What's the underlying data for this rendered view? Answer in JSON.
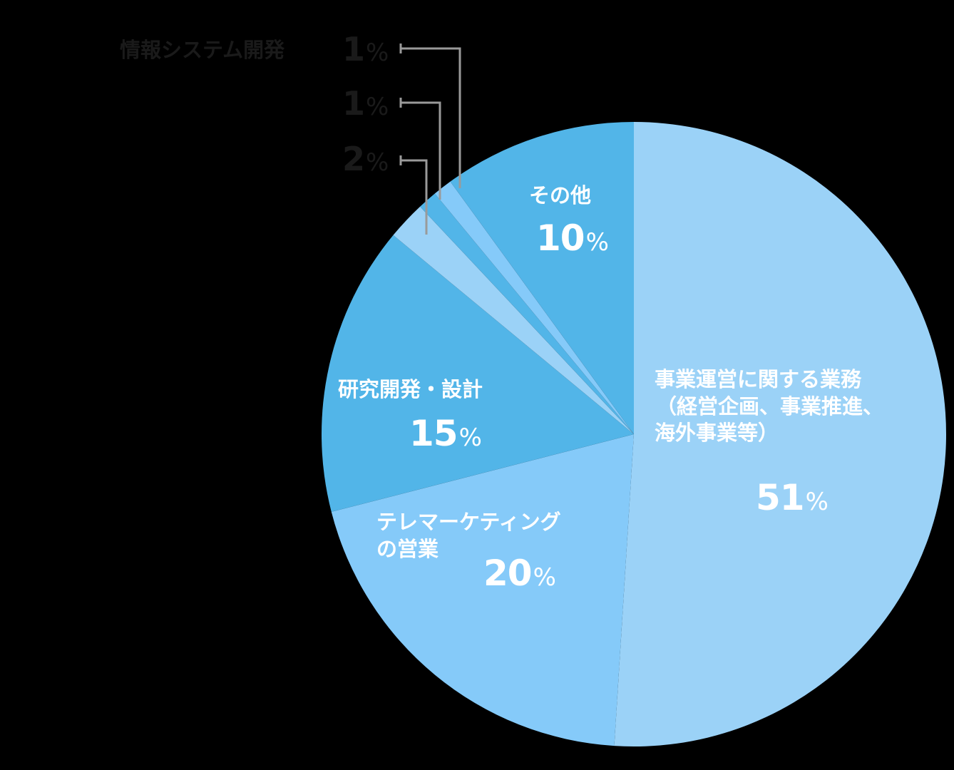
{
  "chart_data": {
    "type": "pie",
    "title": "",
    "start_angle_deg": 0,
    "direction": "clockwise",
    "center": [
      889,
      609
    ],
    "radius": 438,
    "slices": [
      {
        "label": "事業運営に関する業務（経営企画、事業推進、海外事業等）",
        "value": 51,
        "color": "#9bd2f7"
      },
      {
        "label": "テレマーケティングの営業",
        "value": 20,
        "color": "#85caf9"
      },
      {
        "label": "研究開発・設計",
        "value": 15,
        "color": "#52b5e8"
      },
      {
        "label": "",
        "value": 2,
        "color": "#9bd2f7"
      },
      {
        "label": "",
        "value": 1,
        "color": "#52b5e8"
      },
      {
        "label": "情報システム開発",
        "value": 1,
        "color": "#85caf9"
      },
      {
        "label": "その他",
        "value": 10,
        "color": "#52b5e8"
      }
    ]
  },
  "labels": {
    "business": {
      "line1": "事業運営に関する業務",
      "line2": "（経営企画、事業推進、",
      "line3": "海外事業等）",
      "value": "51",
      "unit": "%"
    },
    "telemarketing": {
      "line1": "テレマーケティング",
      "line2": "の営業",
      "value": "20",
      "unit": "%"
    },
    "rnd": {
      "line1": "研究開発・設計",
      "value": "15",
      "unit": "%"
    },
    "other": {
      "line1": "その他",
      "value": "10",
      "unit": "%"
    },
    "small_1": {
      "name": "情報システム開発",
      "value": "1",
      "unit": "%"
    },
    "small_2": {
      "value": "1",
      "unit": "%"
    },
    "small_3": {
      "value": "2",
      "unit": "%"
    }
  },
  "colors": {
    "background": "#000000",
    "leader_line": "#9a9a9a",
    "label_white": "#ffffff",
    "label_dark": "#1a1a1a"
  }
}
